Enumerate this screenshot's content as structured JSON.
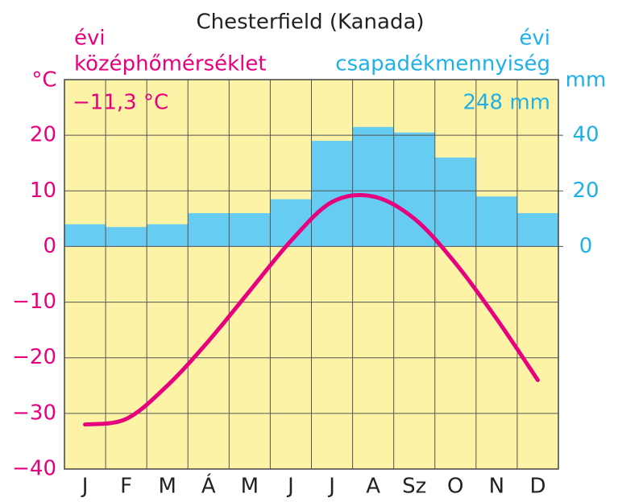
{
  "chart_data": {
    "type": "climate",
    "title": "Chesterfield (Kanada)",
    "categories": [
      "J",
      "F",
      "M",
      "Á",
      "M",
      "J",
      "J",
      "A",
      "Sz",
      "O",
      "N",
      "D"
    ],
    "series": [
      {
        "name": "középhőmérséklet",
        "prefix": "évi",
        "annual": "−11,3 °C",
        "type": "line",
        "color": "#e6007e",
        "values": [
          -32,
          -31,
          -25,
          -17,
          -8,
          1,
          8,
          9,
          5,
          -3,
          -13,
          -24
        ]
      },
      {
        "name": "csapadékmennyiség",
        "prefix": "évi",
        "annual": "248 mm",
        "type": "bar",
        "axis": "y2",
        "color": "#66ccf2",
        "values": [
          8,
          7,
          8,
          12,
          12,
          17,
          38,
          43,
          41,
          32,
          18,
          12
        ]
      }
    ],
    "ylabel": "°C",
    "y2label": "mm",
    "ylim": [
      -40,
      30
    ],
    "yticks": [
      {
        "value": -40,
        "label": "−40"
      },
      {
        "value": -30,
        "label": "−30"
      },
      {
        "value": -20,
        "label": "−20"
      },
      {
        "value": -10,
        "label": "−10"
      },
      0,
      10,
      20
    ],
    "y2lim": [
      -80,
      60
    ],
    "y2ticks": [
      0,
      20,
      40
    ],
    "background": "#fdf3a7",
    "y_color": "#e6007e",
    "y2_color": "#1fb1e6",
    "grid": true
  }
}
